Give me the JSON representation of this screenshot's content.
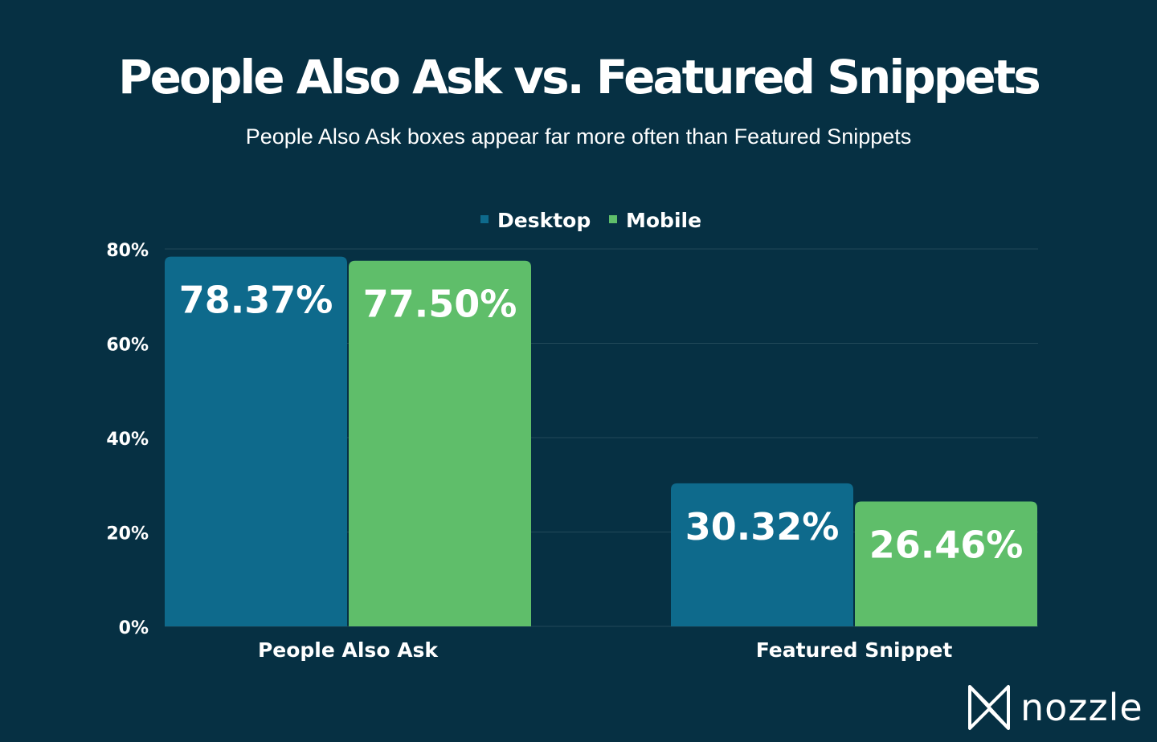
{
  "chart_data": {
    "type": "bar",
    "title": "People Also Ask vs. Featured Snippets",
    "subtitle": "People Also Ask boxes appear far more often than Featured Snippets",
    "categories": [
      "People Also Ask",
      "Featured Snippet"
    ],
    "series": [
      {
        "name": "Desktop",
        "values": [
          78.37,
          30.32
        ],
        "labels": [
          "78.37%",
          "30.32%"
        ],
        "color": "#0e6a8c"
      },
      {
        "name": "Mobile",
        "values": [
          77.5,
          26.46
        ],
        "labels": [
          "77.50%",
          "26.46%"
        ],
        "color": "#5fbe6a"
      }
    ],
    "ylim": [
      0,
      80
    ],
    "yticks": [
      0,
      20,
      40,
      60,
      80
    ],
    "ytick_labels": [
      "0%",
      "20%",
      "40%",
      "60%",
      "80%"
    ],
    "xlabel": "",
    "ylabel": "",
    "legend": "top-center",
    "grid": true
  },
  "colors": {
    "background": "#063043",
    "grid": "#22495a",
    "desktop": "#0e6a8c",
    "mobile": "#5fbe6a",
    "text": "#ffffff"
  },
  "brand": {
    "name": "nozzle",
    "icon": "nozzle-logo-icon"
  }
}
